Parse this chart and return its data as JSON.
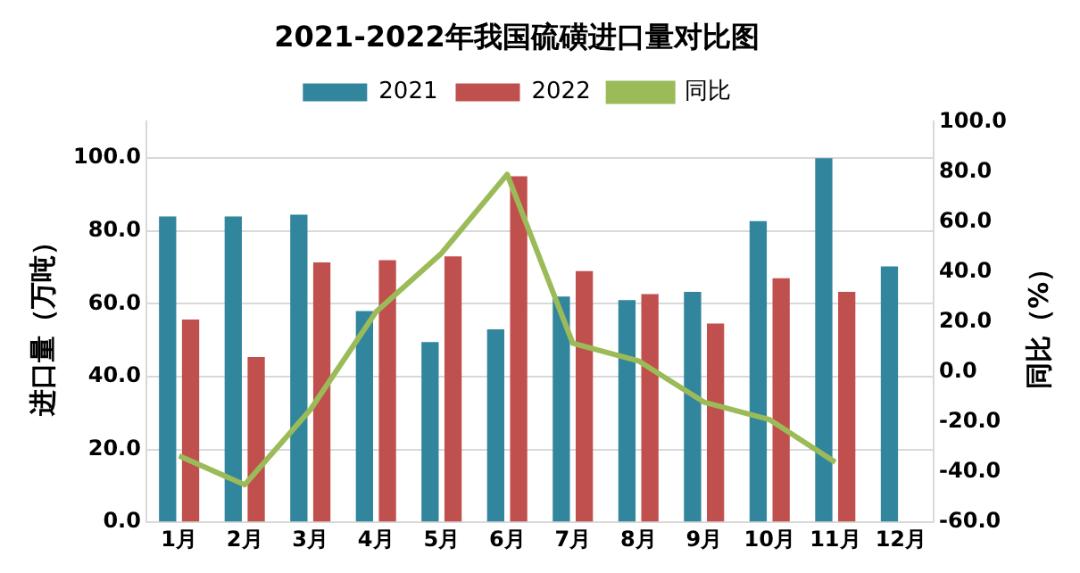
{
  "chart_data": {
    "type": "bar",
    "title": "2021-2022年我国硫磺进口量对比图",
    "categories": [
      "1月",
      "2月",
      "3月",
      "4月",
      "5月",
      "6月",
      "7月",
      "8月",
      "9月",
      "10月",
      "11月",
      "12月"
    ],
    "series": [
      {
        "name": "2021",
        "color": "#31859c",
        "values": [
          84,
          84,
          84.5,
          58,
          49.5,
          53,
          62,
          61,
          63.3,
          82.7,
          100,
          70.3
        ]
      },
      {
        "name": "2022",
        "color": "#c0504d",
        "values": [
          55.7,
          45.4,
          71.4,
          72,
          73,
          95,
          69,
          62.7,
          54.6,
          67,
          63.3,
          null
        ]
      },
      {
        "name": "同比",
        "type": "line",
        "axis": "y2",
        "color": "#9bbb59",
        "values": [
          -33.5,
          -45,
          -15,
          24,
          47.5,
          79,
          11.5,
          4.5,
          -12,
          -19,
          -36,
          null
        ]
      }
    ],
    "ylabel": "进口量（万吨）",
    "y2label": "同比（%）",
    "ylim": [
      0,
      110
    ],
    "yticks": [
      {
        "value": 0,
        "label": "0.0"
      },
      {
        "value": 20,
        "label": "20.0"
      },
      {
        "value": 40,
        "label": "40.0"
      },
      {
        "value": 60,
        "label": "60.0"
      },
      {
        "value": 80,
        "label": "80.0"
      },
      {
        "value": 100,
        "label": "100.0"
      }
    ],
    "y2lim": [
      -60,
      100
    ],
    "y2ticks": [
      {
        "value": -60,
        "label": "-60.0"
      },
      {
        "value": -40,
        "label": "-40.0"
      },
      {
        "value": -20,
        "label": "-20.0"
      },
      {
        "value": 0,
        "label": "0.0"
      },
      {
        "value": 20,
        "label": "20.0"
      },
      {
        "value": 40,
        "label": "40.0"
      },
      {
        "value": 60,
        "label": "60.0"
      },
      {
        "value": 80,
        "label": "80.0"
      },
      {
        "value": 100,
        "label": "100.0"
      }
    ],
    "grid": "y",
    "legend": "top",
    "marker": "none",
    "line_style": "solid"
  }
}
